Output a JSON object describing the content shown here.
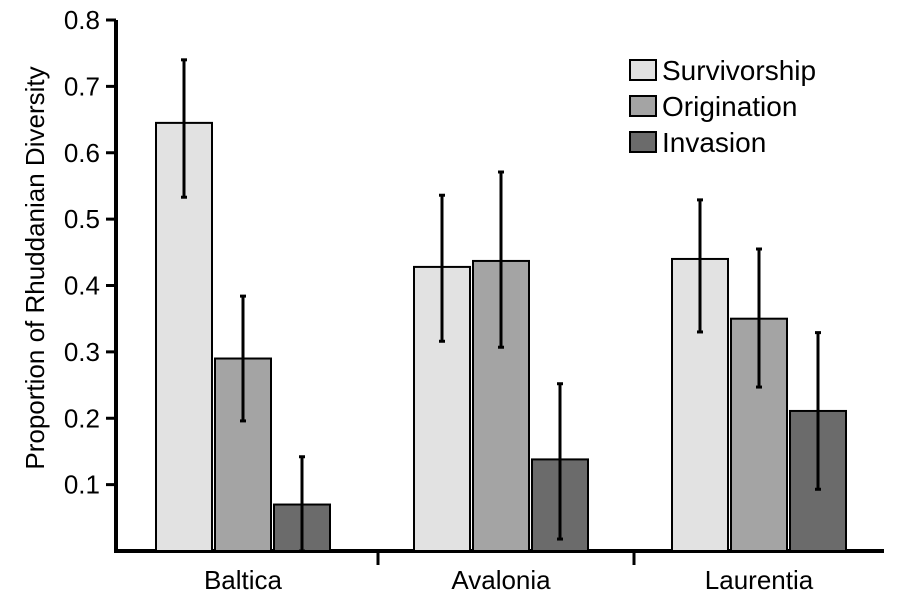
{
  "chart_data": {
    "type": "bar",
    "title": "",
    "xlabel": "",
    "ylabel": "Proportion of Rhuddanian Diversity",
    "ylim": [
      0,
      0.8
    ],
    "yticks": [
      "0.1",
      "0.2",
      "0.3",
      "0.4",
      "0.5",
      "0.6",
      "0.7",
      "0.8"
    ],
    "categories": [
      "Baltica",
      "Avalonia",
      "Laurentia"
    ],
    "grid": false,
    "legend_position": "top-right",
    "series": [
      {
        "name": "Survivorship",
        "color": "#e2e2e2",
        "values": [
          0.645,
          0.428,
          0.44
        ],
        "error_low": [
          0.533,
          0.316,
          0.33
        ],
        "error_high": [
          0.74,
          0.536,
          0.529
        ]
      },
      {
        "name": "Origination",
        "color": "#a4a4a4",
        "values": [
          0.29,
          0.437,
          0.35
        ],
        "error_low": [
          0.196,
          0.307,
          0.247
        ],
        "error_high": [
          0.384,
          0.571,
          0.455
        ]
      },
      {
        "name": "Invasion",
        "color": "#6b6b6b",
        "values": [
          0.07,
          0.138,
          0.211
        ],
        "error_low": [
          0.0,
          0.018,
          0.093
        ],
        "error_high": [
          0.142,
          0.252,
          0.329
        ]
      }
    ]
  }
}
